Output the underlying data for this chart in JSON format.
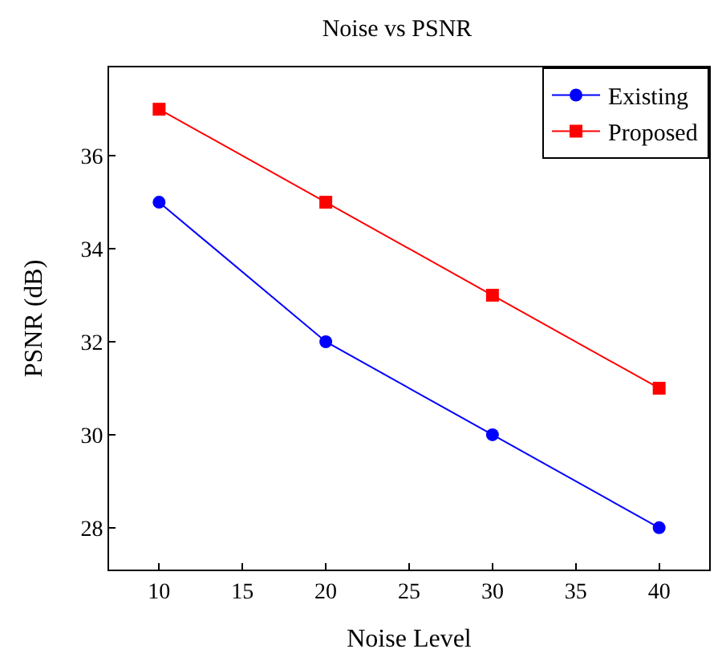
{
  "chart_data": {
    "type": "line",
    "title": "Noise vs PSNR",
    "xlabel": "Noise Level",
    "ylabel": "PSNR (dB)",
    "x": [
      10,
      20,
      30,
      40
    ],
    "series": [
      {
        "name": "Existing",
        "color": "#0000ff",
        "marker": "circle",
        "values": [
          35,
          32,
          30,
          28
        ]
      },
      {
        "name": "Proposed",
        "color": "#ff0000",
        "marker": "square",
        "values": [
          37,
          35,
          33,
          31
        ]
      }
    ],
    "xlim": [
      7,
      43
    ],
    "xticks": [
      10,
      15,
      20,
      25,
      30,
      35,
      40
    ],
    "ylim": [
      27.1,
      37.9
    ],
    "yticks": [
      28,
      30,
      32,
      34,
      36
    ],
    "grid": false,
    "legend": "top right",
    "line_style": "solid"
  }
}
